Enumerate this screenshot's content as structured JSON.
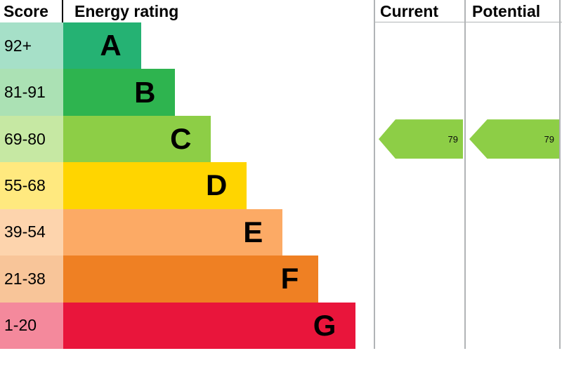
{
  "header": {
    "score": "Score",
    "energy_rating": "Energy rating",
    "current": "Current",
    "potential": "Potential"
  },
  "chart_data": {
    "type": "bar",
    "title": "Energy rating",
    "description": "EPC energy efficiency rating chart with score bands A-G",
    "bands": [
      {
        "range": "92+",
        "letter": "A",
        "bar_color": "#25b273",
        "score_color": "#a6e0c8",
        "width_pct": 25
      },
      {
        "range": "81-91",
        "letter": "B",
        "bar_color": "#2eb44f",
        "score_color": "#abe1b4",
        "width_pct": 36
      },
      {
        "range": "69-80",
        "letter": "C",
        "bar_color": "#8dce46",
        "score_color": "#c6e8a3",
        "width_pct": 47.5
      },
      {
        "range": "55-68",
        "letter": "D",
        "bar_color": "#ffd500",
        "score_color": "#ffe97f",
        "width_pct": 59
      },
      {
        "range": "39-54",
        "letter": "E",
        "bar_color": "#fcaa65",
        "score_color": "#fdd4ad",
        "width_pct": 70.5
      },
      {
        "range": "21-38",
        "letter": "F",
        "bar_color": "#ef8023",
        "score_color": "#f8c599",
        "width_pct": 82
      },
      {
        "range": "1-20",
        "letter": "G",
        "bar_color": "#e9153b",
        "score_color": "#f4899c",
        "width_pct": 94
      }
    ],
    "current": {
      "value": 79,
      "band": "C",
      "arrow_color": "#8dce46"
    },
    "potential": {
      "value": 79,
      "band": "C",
      "arrow_color": "#8dce46"
    }
  }
}
